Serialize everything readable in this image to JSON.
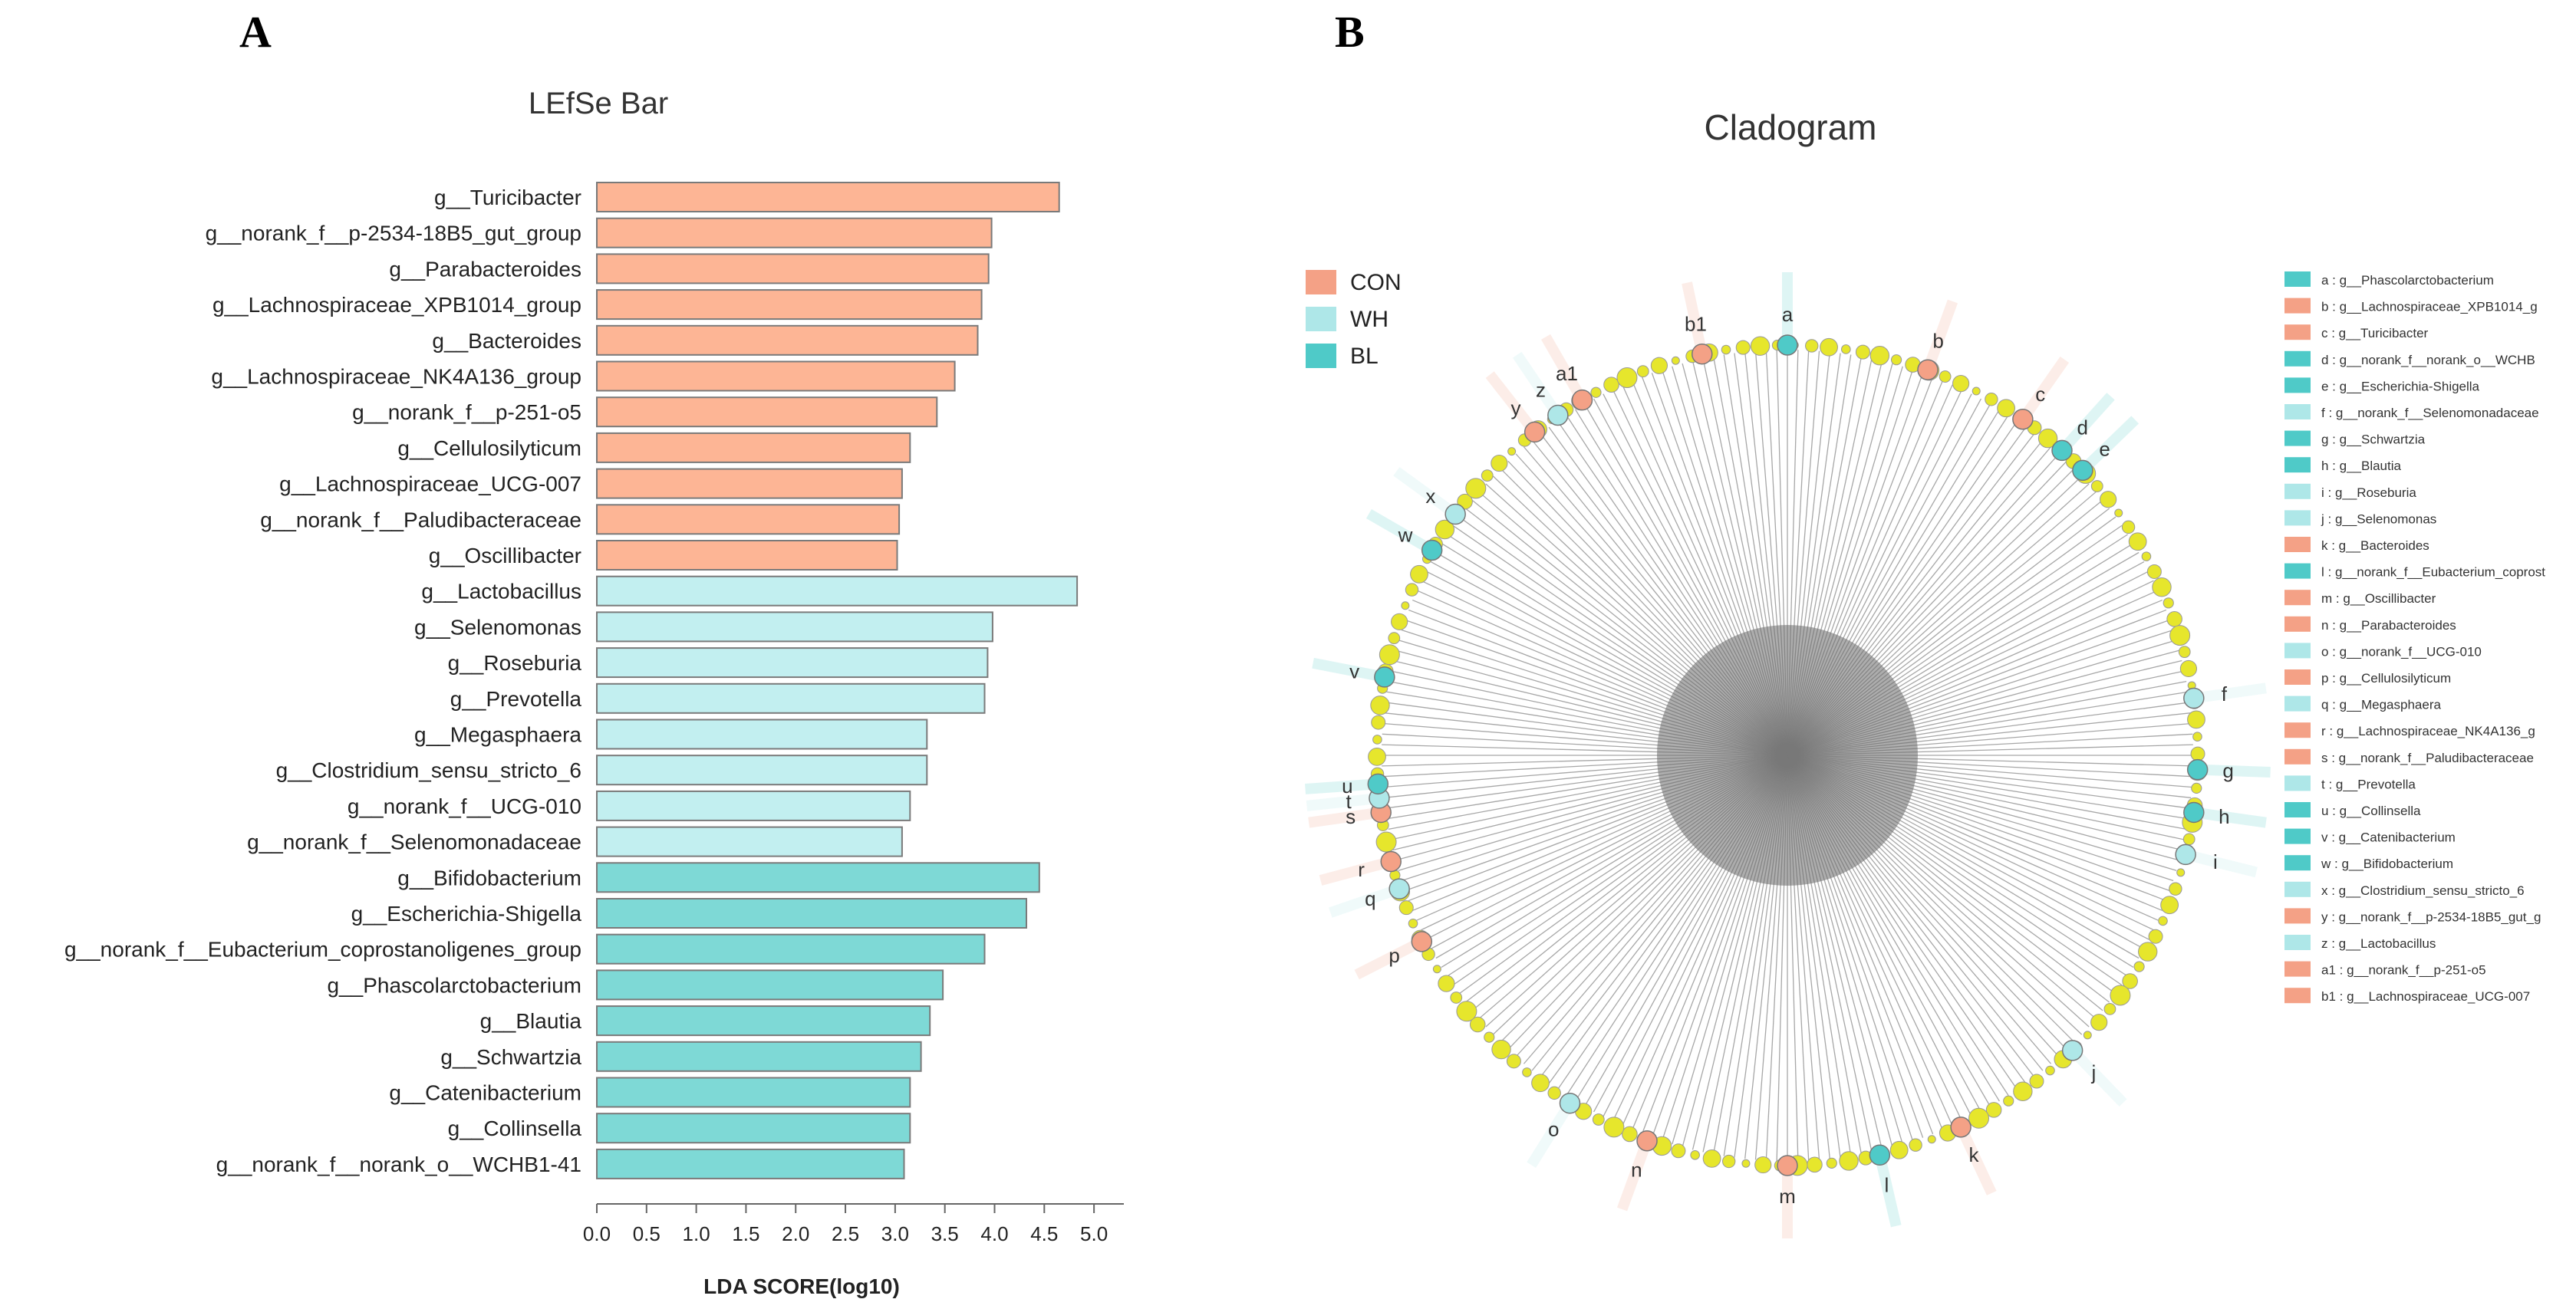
{
  "panels": {
    "a_label": "A",
    "b_label": "B"
  },
  "colors": {
    "CON": "#fdb595",
    "WH": "#c2eff0",
    "BL": "#7ed9d6",
    "bar_stroke": "#7a7a7a",
    "legend_CON": "#f4a186",
    "legend_WH": "#aee7e8",
    "legend_BL": "#4fcac8",
    "node_yellow": "#e6e62c"
  },
  "chart_data": [
    {
      "type": "bar",
      "orientation": "horizontal",
      "title": "LEfSe Bar",
      "xlabel": "LDA SCORE(log10)",
      "ylabel": "",
      "xlim": [
        0,
        5.3
      ],
      "xticks": [
        "0.0",
        "0.5",
        "1.0",
        "1.5",
        "2.0",
        "2.5",
        "3.0",
        "3.5",
        "4.0",
        "4.5",
        "5.0"
      ],
      "bars": [
        {
          "label": "g__Turicibacter",
          "value": 4.65,
          "group": "CON"
        },
        {
          "label": "g__norank_f__p-2534-18B5_gut_group",
          "value": 3.97,
          "group": "CON"
        },
        {
          "label": "g__Parabacteroides",
          "value": 3.94,
          "group": "CON"
        },
        {
          "label": "g__Lachnospiraceae_XPB1014_group",
          "value": 3.87,
          "group": "CON"
        },
        {
          "label": "g__Bacteroides",
          "value": 3.83,
          "group": "CON"
        },
        {
          "label": "g__Lachnospiraceae_NK4A136_group",
          "value": 3.6,
          "group": "CON"
        },
        {
          "label": "g__norank_f__p-251-o5",
          "value": 3.42,
          "group": "CON"
        },
        {
          "label": "g__Cellulosilyticum",
          "value": 3.15,
          "group": "CON"
        },
        {
          "label": "g__Lachnospiraceae_UCG-007",
          "value": 3.07,
          "group": "CON"
        },
        {
          "label": "g__norank_f__Paludibacteraceae",
          "value": 3.04,
          "group": "CON"
        },
        {
          "label": "g__Oscillibacter",
          "value": 3.02,
          "group": "CON"
        },
        {
          "label": "g__Lactobacillus",
          "value": 4.83,
          "group": "WH"
        },
        {
          "label": "g__Selenomonas",
          "value": 3.98,
          "group": "WH"
        },
        {
          "label": "g__Roseburia",
          "value": 3.93,
          "group": "WH"
        },
        {
          "label": "g__Prevotella",
          "value": 3.9,
          "group": "WH"
        },
        {
          "label": "g__Megasphaera",
          "value": 3.32,
          "group": "WH"
        },
        {
          "label": "g__Clostridium_sensu_stricto_6",
          "value": 3.32,
          "group": "WH"
        },
        {
          "label": "g__norank_f__UCG-010",
          "value": 3.15,
          "group": "WH"
        },
        {
          "label": "g__norank_f__Selenomonadaceae",
          "value": 3.07,
          "group": "WH"
        },
        {
          "label": "g__Bifidobacterium",
          "value": 4.45,
          "group": "BL"
        },
        {
          "label": "g__Escherichia-Shigella",
          "value": 4.32,
          "group": "BL"
        },
        {
          "label": "g__norank_f__Eubacterium_coprostanoligenes_group",
          "value": 3.9,
          "group": "BL"
        },
        {
          "label": "g__Phascolarctobacterium",
          "value": 3.48,
          "group": "BL"
        },
        {
          "label": "g__Blautia",
          "value": 3.35,
          "group": "BL"
        },
        {
          "label": "g__Schwartzia",
          "value": 3.26,
          "group": "BL"
        },
        {
          "label": "g__Catenibacterium",
          "value": 3.15,
          "group": "BL"
        },
        {
          "label": "g__Collinsella",
          "value": 3.15,
          "group": "BL"
        },
        {
          "label": "g__norank_f__norank_o__WCHB1-41",
          "value": 3.09,
          "group": "BL"
        }
      ]
    },
    {
      "type": "cladogram",
      "title": "Cladogram",
      "groups": [
        {
          "name": "CON",
          "label": "CON"
        },
        {
          "name": "WH",
          "label": "WH"
        },
        {
          "name": "BL",
          "label": "BL"
        }
      ],
      "highlighted_nodes": [
        {
          "letter": "a",
          "group": "BL",
          "angle": 0
        },
        {
          "letter": "b",
          "group": "CON",
          "angle": 20
        },
        {
          "letter": "c",
          "group": "CON",
          "angle": 35
        },
        {
          "letter": "d",
          "group": "BL",
          "angle": 42
        },
        {
          "letter": "e",
          "group": "BL",
          "angle": 46
        },
        {
          "letter": "f",
          "group": "WH",
          "angle": 82
        },
        {
          "letter": "g",
          "group": "BL",
          "angle": 92
        },
        {
          "letter": "h",
          "group": "BL",
          "angle": 98
        },
        {
          "letter": "i",
          "group": "WH",
          "angle": 104
        },
        {
          "letter": "j",
          "group": "WH",
          "angle": 136
        },
        {
          "letter": "k",
          "group": "CON",
          "angle": 155
        },
        {
          "letter": "l",
          "group": "BL",
          "angle": 167
        },
        {
          "letter": "m",
          "group": "CON",
          "angle": 180
        },
        {
          "letter": "n",
          "group": "CON",
          "angle": 200
        },
        {
          "letter": "o",
          "group": "WH",
          "angle": 212
        },
        {
          "letter": "p",
          "group": "CON",
          "angle": 243
        },
        {
          "letter": "q",
          "group": "WH",
          "angle": 251
        },
        {
          "letter": "r",
          "group": "CON",
          "angle": 255
        },
        {
          "letter": "s",
          "group": "CON",
          "angle": 262
        },
        {
          "letter": "t",
          "group": "WH",
          "angle": 264
        },
        {
          "letter": "u",
          "group": "BL",
          "angle": 266
        },
        {
          "letter": "v",
          "group": "BL",
          "angle": 281
        },
        {
          "letter": "w",
          "group": "BL",
          "angle": 300
        },
        {
          "letter": "x",
          "group": "WH",
          "angle": 306
        },
        {
          "letter": "y",
          "group": "CON",
          "angle": 322
        },
        {
          "letter": "z",
          "group": "WH",
          "angle": 326
        },
        {
          "letter": "a1",
          "group": "CON",
          "angle": 330
        },
        {
          "letter": "b1",
          "group": "CON",
          "angle": 348
        }
      ],
      "key": [
        {
          "text": "a : g__Phascolarctobacterium",
          "group": "BL"
        },
        {
          "text": "b : g__Lachnospiraceae_XPB1014_g",
          "group": "CON"
        },
        {
          "text": "c : g__Turicibacter",
          "group": "CON"
        },
        {
          "text": "d : g__norank_f__norank_o__WCHB",
          "group": "BL"
        },
        {
          "text": "e : g__Escherichia-Shigella",
          "group": "BL"
        },
        {
          "text": "f : g__norank_f__Selenomonadaceae",
          "group": "WH"
        },
        {
          "text": "g : g__Schwartzia",
          "group": "BL"
        },
        {
          "text": "h : g__Blautia",
          "group": "BL"
        },
        {
          "text": "i : g__Roseburia",
          "group": "WH"
        },
        {
          "text": "j : g__Selenomonas",
          "group": "WH"
        },
        {
          "text": "k : g__Bacteroides",
          "group": "CON"
        },
        {
          "text": "l : g__norank_f__Eubacterium_coprost",
          "group": "BL"
        },
        {
          "text": "m : g__Oscillibacter",
          "group": "CON"
        },
        {
          "text": "n : g__Parabacteroides",
          "group": "CON"
        },
        {
          "text": "o : g__norank_f__UCG-010",
          "group": "WH"
        },
        {
          "text": "p : g__Cellulosilyticum",
          "group": "CON"
        },
        {
          "text": "q : g__Megasphaera",
          "group": "WH"
        },
        {
          "text": "r : g__Lachnospiraceae_NK4A136_g",
          "group": "CON"
        },
        {
          "text": "s : g__norank_f__Paludibacteraceae",
          "group": "CON"
        },
        {
          "text": "t : g__Prevotella",
          "group": "WH"
        },
        {
          "text": "u : g__Collinsella",
          "group": "BL"
        },
        {
          "text": "v : g__Catenibacterium",
          "group": "BL"
        },
        {
          "text": "w : g__Bifidobacterium",
          "group": "BL"
        },
        {
          "text": "x : g__Clostridium_sensu_stricto_6",
          "group": "WH"
        },
        {
          "text": "y : g__norank_f__p-2534-18B5_gut_g",
          "group": "CON"
        },
        {
          "text": "z : g__Lactobacillus",
          "group": "WH"
        },
        {
          "text": "a1 : g__norank_f__p-251-o5",
          "group": "CON"
        },
        {
          "text": "b1 : g__Lachnospiraceae_UCG-007",
          "group": "CON"
        }
      ]
    }
  ]
}
